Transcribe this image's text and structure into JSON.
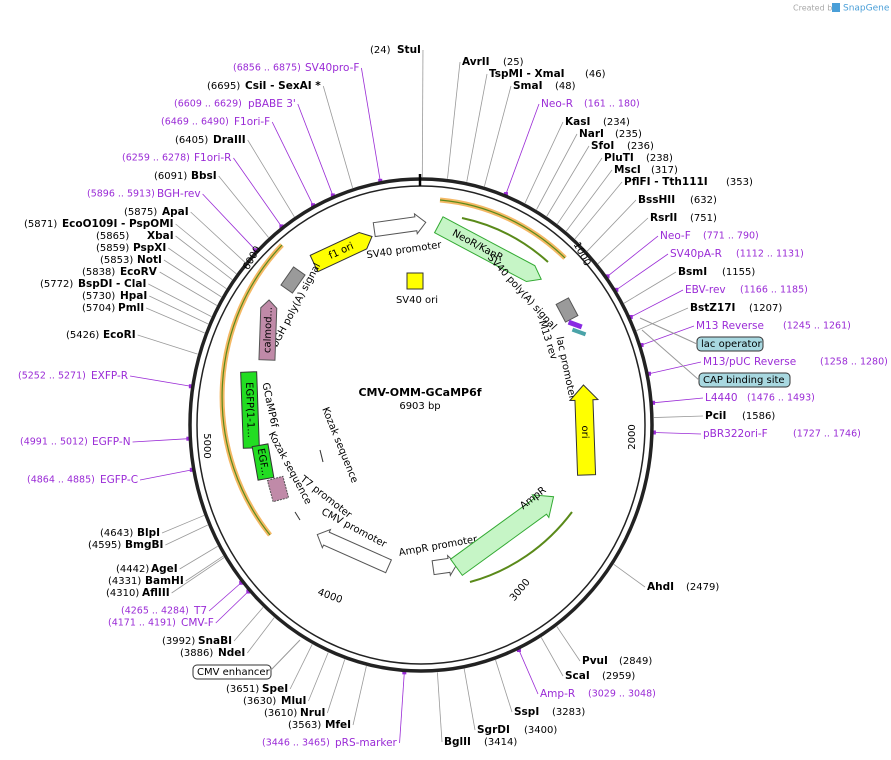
{
  "header": {
    "created_by": "Created by",
    "brand": "SnapGene"
  },
  "map": {
    "title": "CMV-OMM-GCaMP6f",
    "length": "6903 bp",
    "ruler": [
      "1000",
      "2000",
      "3000",
      "4000",
      "5000",
      "6000"
    ]
  },
  "sites": [
    {
      "name": "StuI",
      "position": "(24)"
    },
    {
      "name": "AvrII",
      "position": "(25)"
    },
    {
      "name": "TspMI - XmaI",
      "position": "(46)"
    },
    {
      "name": "SmaI",
      "position": "(48)"
    },
    {
      "name": "KasI",
      "position": "(234)"
    },
    {
      "name": "NarI",
      "position": "(235)"
    },
    {
      "name": "SfoI",
      "position": "(236)"
    },
    {
      "name": "PluTI",
      "position": "(238)"
    },
    {
      "name": "MscI",
      "position": "(317)"
    },
    {
      "name": "PflFI - Tth111I",
      "position": "(353)"
    },
    {
      "name": "BssHII",
      "position": "(632)"
    },
    {
      "name": "RsrII",
      "position": "(751)"
    },
    {
      "name": "BsmI",
      "position": "(1155)"
    },
    {
      "name": "BstZ17I",
      "position": "(1207)"
    },
    {
      "name": "PciI",
      "position": "(1586)"
    },
    {
      "name": "AhdI",
      "position": "(2479)"
    },
    {
      "name": "PvuI",
      "position": "(2849)"
    },
    {
      "name": "ScaI",
      "position": "(2959)"
    },
    {
      "name": "SspI",
      "position": "(3283)"
    },
    {
      "name": "SgrDI",
      "position": "(3400)"
    },
    {
      "name": "BglII",
      "position": "(3414)"
    },
    {
      "name": "MfeI",
      "position": "(3563)"
    },
    {
      "name": "NruI",
      "position": "(3610)"
    },
    {
      "name": "MluI",
      "position": "(3630)"
    },
    {
      "name": "SpeI",
      "position": "(3651)"
    },
    {
      "name": "NdeI",
      "position": "(3886)"
    },
    {
      "name": "SnaBI",
      "position": "(3992)"
    },
    {
      "name": "AflIII",
      "position": "(4310)"
    },
    {
      "name": "BamHI",
      "position": "(4331)"
    },
    {
      "name": "AgeI",
      "position": "(4442)"
    },
    {
      "name": "BmgBI",
      "position": "(4595)"
    },
    {
      "name": "BlpI",
      "position": "(4643)"
    },
    {
      "name": "EcoRI",
      "position": "(5426)"
    },
    {
      "name": "PmlI",
      "position": "(5704)"
    },
    {
      "name": "HpaI",
      "position": "(5730)"
    },
    {
      "name": "BspDI - ClaI",
      "position": "(5772)"
    },
    {
      "name": "EcoRV",
      "position": "(5838)"
    },
    {
      "name": "NotI",
      "position": "(5853)"
    },
    {
      "name": "PspXI",
      "position": "(5859)"
    },
    {
      "name": "XbaI",
      "position": "(5865)"
    },
    {
      "name": "EcoO109I - PspOMI",
      "position": "(5871)"
    },
    {
      "name": "ApaI",
      "position": "(5875)"
    },
    {
      "name": "BbsI",
      "position": "(6091)"
    },
    {
      "name": "DraIII",
      "position": "(6405)"
    },
    {
      "name": "CsiI - SexAI *",
      "position": "(6695)"
    }
  ],
  "primers": [
    {
      "name": "Neo-R",
      "range": "(161 .. 180)"
    },
    {
      "name": "Neo-F",
      "range": "(771 .. 790)"
    },
    {
      "name": "SV40pA-R",
      "range": "(1112 .. 1131)"
    },
    {
      "name": "EBV-rev",
      "range": "(1166 .. 1185)"
    },
    {
      "name": "M13 Reverse",
      "range": "(1245 .. 1261)"
    },
    {
      "name": "M13/pUC Reverse",
      "range": "(1258 .. 1280)"
    },
    {
      "name": "L4440",
      "range": "(1476 .. 1493)"
    },
    {
      "name": "pBR322ori-F",
      "range": "(1727 .. 1746)"
    },
    {
      "name": "Amp-R",
      "range": "(3029 .. 3048)"
    },
    {
      "name": "pRS-marker",
      "range": "(3446 .. 3465)"
    },
    {
      "name": "CMV-F",
      "range": "(4171 .. 4191)"
    },
    {
      "name": "T7",
      "range": "(4265 .. 4284)"
    },
    {
      "name": "EGFP-C",
      "range": "(4864 .. 4885)"
    },
    {
      "name": "EGFP-N",
      "range": "(4991 .. 5012)"
    },
    {
      "name": "EXFP-R",
      "range": "(5252 .. 5271)"
    },
    {
      "name": "BGH-rev",
      "range": "(5896 .. 5913)"
    },
    {
      "name": "F1ori-R",
      "range": "(6259 .. 6278)"
    },
    {
      "name": "F1ori-F",
      "range": "(6469 .. 6490)"
    },
    {
      "name": "pBABE 3'",
      "range": "(6609 .. 6629)"
    },
    {
      "name": "SV40pro-F",
      "range": "(6856 .. 6875)"
    }
  ],
  "boxed_features": [
    "lac operator",
    "CAP binding site",
    "CMV enhancer"
  ],
  "features": [
    "f1 ori",
    "SV40 promoter",
    "NeoR/KanR",
    "SV40 ori",
    "SV40 poly(A) signal",
    "bGH poly(A) signal",
    "M13 rev",
    "lac promoter",
    "ori",
    "calmod...",
    "EGFP(1-1...",
    "EGF...",
    "GCaMP6f",
    "Kozak sequence",
    "Kozak sequence",
    "T7 promoter",
    "CMV promoter",
    "AmpR promoter",
    "AmpR"
  ]
}
